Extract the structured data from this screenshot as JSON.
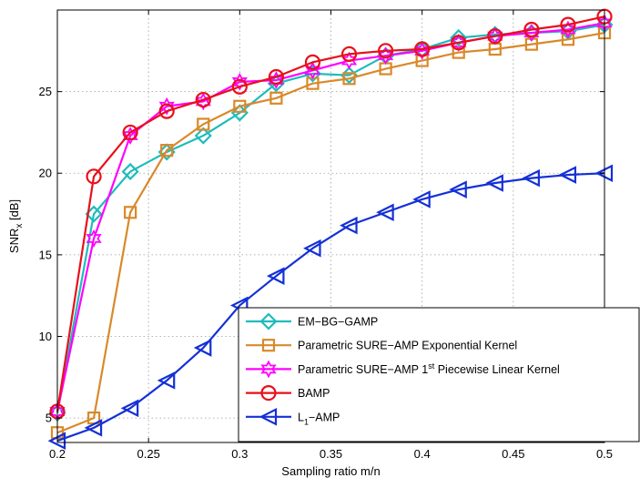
{
  "chart_data": {
    "type": "line",
    "title": "",
    "xlabel": "Sampling ratio  m/n",
    "ylabel": "SNR",
    "ylabel_sub": "x",
    "ylabel_unit": " [dB]",
    "xlim": [
      0.2,
      0.5
    ],
    "ylim": [
      3.5,
      30
    ],
    "xticks": [
      0.2,
      0.25,
      0.3,
      0.35,
      0.4,
      0.45,
      0.5
    ],
    "xtick_labels": [
      "0.2",
      "0.25",
      "0.3",
      "0.35",
      "0.4",
      "0.45",
      "0.5"
    ],
    "yticks": [
      5,
      10,
      15,
      20,
      25
    ],
    "ytick_labels": [
      "5",
      "10",
      "15",
      "20",
      "25"
    ],
    "grid": true,
    "legend_position": "bottom-right",
    "x": [
      0.2,
      0.22,
      0.24,
      0.26,
      0.28,
      0.3,
      0.32,
      0.34,
      0.36,
      0.38,
      0.4,
      0.42,
      0.44,
      0.46,
      0.48,
      0.5
    ],
    "series": [
      {
        "name": "EM−BG−GAMP",
        "color": "#1fbcbc",
        "marker": "diamond",
        "values": [
          5.3,
          17.5,
          20.1,
          21.3,
          22.3,
          23.7,
          25.5,
          26.1,
          26.0,
          27.2,
          27.6,
          28.3,
          28.5,
          28.6,
          28.7,
          29.1
        ]
      },
      {
        "name": "Parametric SURE−AMP Exponential Kernel",
        "color": "#d9892a",
        "marker": "square",
        "values": [
          4.1,
          5.0,
          17.6,
          21.4,
          23.0,
          24.1,
          24.6,
          25.5,
          25.8,
          26.4,
          26.9,
          27.4,
          27.6,
          27.9,
          28.2,
          28.6
        ]
      },
      {
        "name": "Parametric SURE−AMP 1",
        "name_sup": "st",
        "name_rest": " Piecewise Linear Kernel",
        "color": "#ff00ff",
        "marker": "hexagram",
        "values": [
          5.4,
          16.0,
          22.3,
          24.1,
          24.4,
          25.6,
          25.7,
          26.3,
          26.9,
          27.2,
          27.5,
          28.0,
          28.4,
          28.6,
          28.8,
          29.2
        ]
      },
      {
        "name": "BAMP",
        "color": "#e8101a",
        "marker": "circle",
        "values": [
          5.4,
          19.8,
          22.5,
          23.8,
          24.5,
          25.3,
          25.9,
          26.8,
          27.3,
          27.5,
          27.6,
          28.0,
          28.4,
          28.8,
          29.1,
          29.6
        ]
      },
      {
        "name": "L",
        "name_sub": "1",
        "name_rest": "−AMP",
        "color": "#1430d6",
        "marker": "triangle-left",
        "values": [
          3.6,
          4.4,
          5.6,
          7.3,
          9.3,
          11.9,
          13.7,
          15.4,
          16.8,
          17.6,
          18.4,
          19.0,
          19.4,
          19.7,
          19.9,
          20.0
        ]
      }
    ]
  }
}
